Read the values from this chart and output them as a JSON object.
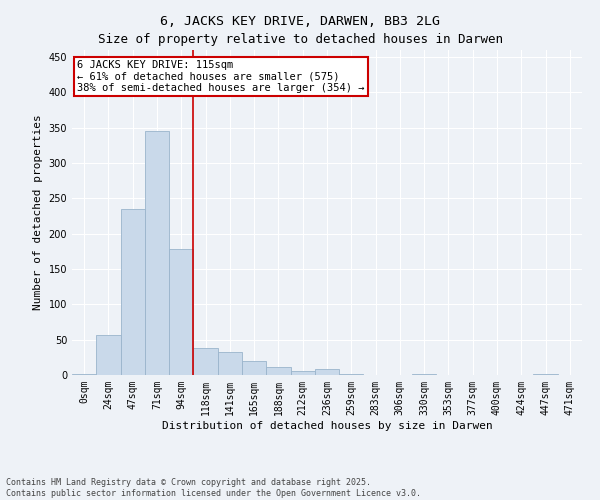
{
  "title": "6, JACKS KEY DRIVE, DARWEN, BB3 2LG",
  "subtitle": "Size of property relative to detached houses in Darwen",
  "xlabel": "Distribution of detached houses by size in Darwen",
  "ylabel": "Number of detached properties",
  "bar_color": "#c9d9ea",
  "bar_edgecolor": "#9ab4cc",
  "background_color": "#eef2f7",
  "grid_color": "#ffffff",
  "categories": [
    "0sqm",
    "24sqm",
    "47sqm",
    "71sqm",
    "94sqm",
    "118sqm",
    "141sqm",
    "165sqm",
    "188sqm",
    "212sqm",
    "236sqm",
    "259sqm",
    "283sqm",
    "306sqm",
    "330sqm",
    "353sqm",
    "377sqm",
    "400sqm",
    "424sqm",
    "447sqm",
    "471sqm"
  ],
  "values": [
    2,
    57,
    235,
    345,
    178,
    38,
    33,
    20,
    12,
    6,
    8,
    1,
    0,
    0,
    2,
    0,
    0,
    0,
    0,
    1,
    0
  ],
  "annotation_text": "6 JACKS KEY DRIVE: 115sqm\n← 61% of detached houses are smaller (575)\n38% of semi-detached houses are larger (354) →",
  "annotation_box_color": "#ffffff",
  "annotation_box_edgecolor": "#cc0000",
  "vline_color": "#cc0000",
  "vline_x_index": 5,
  "footer_text": "Contains HM Land Registry data © Crown copyright and database right 2025.\nContains public sector information licensed under the Open Government Licence v3.0.",
  "ylim": [
    0,
    460
  ],
  "yticks": [
    0,
    50,
    100,
    150,
    200,
    250,
    300,
    350,
    400,
    450
  ],
  "figsize": [
    6.0,
    5.0
  ],
  "dpi": 100,
  "title_fontsize": 9.5,
  "subtitle_fontsize": 9,
  "label_fontsize": 8,
  "tick_fontsize": 7,
  "ann_fontsize": 7.5,
  "footer_fontsize": 6
}
